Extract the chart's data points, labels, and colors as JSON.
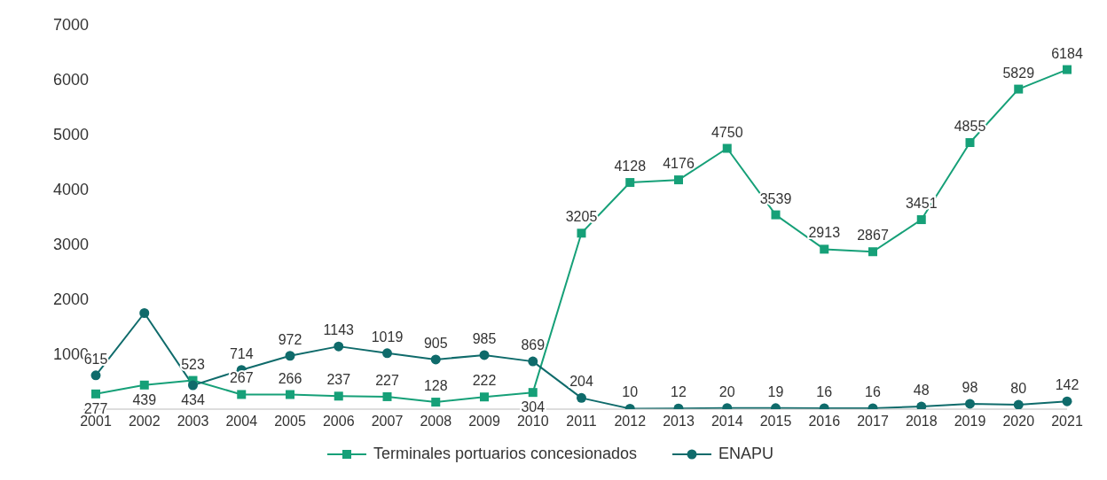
{
  "chart_data": {
    "type": "line",
    "categories": [
      "2001",
      "2002",
      "2003",
      "2004",
      "2005",
      "2006",
      "2007",
      "2008",
      "2009",
      "2010",
      "2011",
      "2012",
      "2013",
      "2014",
      "2015",
      "2016",
      "2017",
      "2018",
      "2019",
      "2020",
      "2021"
    ],
    "series": [
      {
        "name": "Terminales portuarios concesionados",
        "color": "#16a078",
        "marker": "square",
        "values": [
          277,
          439,
          523,
          267,
          266,
          237,
          227,
          128,
          222,
          304,
          3205,
          4128,
          4176,
          4750,
          3539,
          2913,
          2867,
          3451,
          4855,
          5829,
          6184
        ],
        "value_labels": [
          "277",
          "439",
          "523",
          "267",
          "266",
          "237",
          "227",
          "128",
          "222",
          "304",
          "3205",
          "4128",
          "4176",
          "4750",
          "3539",
          "2913",
          "2867",
          "3451",
          "4855",
          "5829",
          "6184"
        ]
      },
      {
        "name": "ENAPU",
        "color": "#0f6b6b",
        "marker": "circle",
        "values": [
          615,
          1750,
          434,
          714,
          972,
          1143,
          1019,
          905,
          985,
          869,
          204,
          10,
          12,
          20,
          19,
          16,
          16,
          48,
          98,
          80,
          142
        ],
        "value_labels": [
          "615",
          null,
          "434",
          "714",
          "972",
          "1143",
          "1019",
          "905",
          "985",
          "869",
          "204",
          "10",
          "12",
          "20",
          "19",
          "16",
          "16",
          "48",
          "98",
          "80",
          "142"
        ]
      }
    ],
    "ylim": [
      0,
      7000
    ],
    "yticks": [
      {
        "value": 0,
        "label": "-"
      },
      1000,
      2000,
      3000,
      4000,
      5000,
      6000,
      7000
    ],
    "grid": false,
    "legend": "bottom",
    "line_style": "solid"
  }
}
